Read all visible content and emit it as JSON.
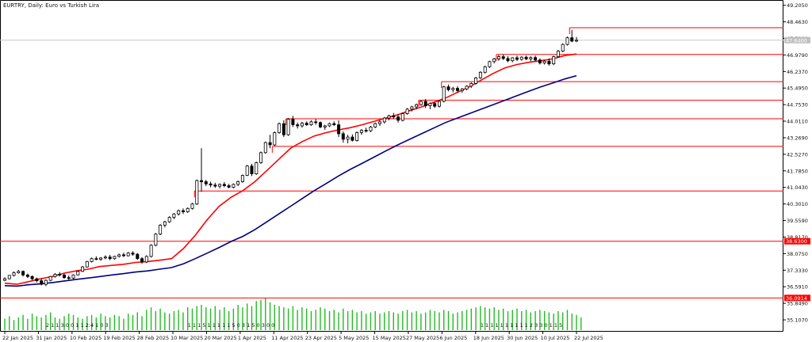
{
  "header": {
    "title": "EURTRY, Daily:  Euro vs Turkish Lira"
  },
  "price_axis": {
    "labels": [
      "49.2050",
      "48.4630",
      "47.7210",
      "46.9790",
      "46.2370",
      "45.4950",
      "44.7530",
      "44.0110",
      "43.2690",
      "42.5270",
      "41.7850",
      "41.0430",
      "40.3010",
      "39.5590",
      "38.8170",
      "38.0750",
      "37.3330",
      "36.5910",
      "35.8490",
      "35.1070"
    ],
    "current_price": "47.6400",
    "badges": [
      {
        "label": "38.6300",
        "value": 38.63
      },
      {
        "label": "36.0914",
        "value": 36.0914
      }
    ]
  },
  "time_axis": {
    "labels": [
      "22 Jan 2025",
      "31 Jan 2025",
      "10 Feb 2025",
      "19 Feb 2025",
      "28 Feb 2025",
      "10 Mar 2025",
      "20 Mar 2025",
      "1 Apr 2025",
      "11 Apr 2025",
      "23 Apr 2025",
      "5 May 2025",
      "15 May 2025",
      "27 May 2025",
      "6 Jun 2025",
      "18 Jun 2025",
      "30 Jun 2025",
      "10 Jul 2025",
      "22 Jul 2025"
    ]
  },
  "colors": {
    "background": "#ffffff",
    "candle_outline": "#000000",
    "candle_up_fill": "#ffffff",
    "candle_down_fill": "#000000",
    "ma_fast": "#ff0000",
    "ma_slow": "#000080",
    "level_line": "#ff0000",
    "volume": "#22bb22",
    "badge_bg": "#ff0000",
    "grid": "#c8c8c8"
  },
  "chart_data": {
    "type": "candlestick",
    "title": "EURTRY, Daily:  Euro vs Turkish Lira",
    "ylim": [
      34.86,
      49.21
    ],
    "x_range": [
      "22 Jan 2025",
      "24 Jul 2025"
    ],
    "grid": false,
    "candles": [
      {
        "o": 36.88,
        "h": 37.02,
        "l": 36.84,
        "c": 36.95
      },
      {
        "o": 36.95,
        "h": 37.12,
        "l": 36.92,
        "c": 37.1
      },
      {
        "o": 37.1,
        "h": 37.28,
        "l": 37.05,
        "c": 37.22
      },
      {
        "o": 37.22,
        "h": 37.35,
        "l": 37.18,
        "c": 37.28
      },
      {
        "o": 37.28,
        "h": 37.32,
        "l": 37.05,
        "c": 37.12
      },
      {
        "o": 37.12,
        "h": 37.18,
        "l": 36.98,
        "c": 37.05
      },
      {
        "o": 37.05,
        "h": 37.1,
        "l": 36.88,
        "c": 36.95
      },
      {
        "o": 36.95,
        "h": 37.0,
        "l": 36.78,
        "c": 36.86
      },
      {
        "o": 36.86,
        "h": 36.96,
        "l": 36.65,
        "c": 36.7
      },
      {
        "o": 36.7,
        "h": 36.92,
        "l": 36.62,
        "c": 36.88
      },
      {
        "o": 36.88,
        "h": 37.08,
        "l": 36.84,
        "c": 37.05
      },
      {
        "o": 37.05,
        "h": 37.2,
        "l": 37.0,
        "c": 37.15
      },
      {
        "o": 37.15,
        "h": 37.25,
        "l": 37.05,
        "c": 37.12
      },
      {
        "o": 37.12,
        "h": 37.18,
        "l": 36.95,
        "c": 37.0
      },
      {
        "o": 37.0,
        "h": 37.1,
        "l": 36.9,
        "c": 36.98
      },
      {
        "o": 36.98,
        "h": 37.15,
        "l": 36.94,
        "c": 37.12
      },
      {
        "o": 37.12,
        "h": 37.32,
        "l": 37.1,
        "c": 37.28
      },
      {
        "o": 37.28,
        "h": 37.52,
        "l": 37.25,
        "c": 37.48
      },
      {
        "o": 37.48,
        "h": 37.75,
        "l": 37.45,
        "c": 37.72
      },
      {
        "o": 37.72,
        "h": 37.9,
        "l": 37.68,
        "c": 37.85
      },
      {
        "o": 37.85,
        "h": 37.95,
        "l": 37.78,
        "c": 37.82
      },
      {
        "o": 37.82,
        "h": 37.92,
        "l": 37.75,
        "c": 37.88
      },
      {
        "o": 37.88,
        "h": 38.0,
        "l": 37.82,
        "c": 37.92
      },
      {
        "o": 37.92,
        "h": 38.02,
        "l": 37.78,
        "c": 37.85
      },
      {
        "o": 37.85,
        "h": 37.98,
        "l": 37.8,
        "c": 37.95
      },
      {
        "o": 37.95,
        "h": 38.08,
        "l": 37.9,
        "c": 38.02
      },
      {
        "o": 38.02,
        "h": 38.12,
        "l": 37.92,
        "c": 37.98
      },
      {
        "o": 37.98,
        "h": 38.15,
        "l": 37.95,
        "c": 38.1
      },
      {
        "o": 38.1,
        "h": 38.18,
        "l": 37.98,
        "c": 38.05
      },
      {
        "o": 38.05,
        "h": 38.1,
        "l": 37.8,
        "c": 37.85
      },
      {
        "o": 37.85,
        "h": 37.92,
        "l": 37.62,
        "c": 37.7
      },
      {
        "o": 37.7,
        "h": 38.0,
        "l": 37.65,
        "c": 37.95
      },
      {
        "o": 37.95,
        "h": 38.5,
        "l": 37.9,
        "c": 38.45
      },
      {
        "o": 38.45,
        "h": 39.0,
        "l": 38.4,
        "c": 38.95
      },
      {
        "o": 38.95,
        "h": 39.4,
        "l": 38.9,
        "c": 39.35
      },
      {
        "o": 39.35,
        "h": 39.55,
        "l": 39.25,
        "c": 39.5
      },
      {
        "o": 39.5,
        "h": 39.75,
        "l": 39.45,
        "c": 39.7
      },
      {
        "o": 39.7,
        "h": 39.9,
        "l": 39.62,
        "c": 39.85
      },
      {
        "o": 39.85,
        "h": 40.05,
        "l": 39.78,
        "c": 40.0
      },
      {
        "o": 40.0,
        "h": 40.1,
        "l": 39.85,
        "c": 39.95
      },
      {
        "o": 39.95,
        "h": 40.15,
        "l": 39.9,
        "c": 40.1
      },
      {
        "o": 40.1,
        "h": 40.35,
        "l": 40.05,
        "c": 40.3
      },
      {
        "o": 40.3,
        "h": 41.4,
        "l": 40.25,
        "c": 41.35
      },
      {
        "o": 41.35,
        "h": 42.8,
        "l": 40.85,
        "c": 41.3
      },
      {
        "o": 41.3,
        "h": 41.38,
        "l": 41.1,
        "c": 41.2
      },
      {
        "o": 41.2,
        "h": 41.3,
        "l": 41.05,
        "c": 41.15
      },
      {
        "o": 41.15,
        "h": 41.25,
        "l": 41.02,
        "c": 41.1
      },
      {
        "o": 41.1,
        "h": 41.22,
        "l": 41.0,
        "c": 41.18
      },
      {
        "o": 41.18,
        "h": 41.28,
        "l": 41.05,
        "c": 41.12
      },
      {
        "o": 41.12,
        "h": 41.2,
        "l": 41.0,
        "c": 41.05
      },
      {
        "o": 41.05,
        "h": 41.22,
        "l": 41.0,
        "c": 41.18
      },
      {
        "o": 41.18,
        "h": 41.35,
        "l": 41.1,
        "c": 41.3
      },
      {
        "o": 41.3,
        "h": 41.62,
        "l": 41.25,
        "c": 41.58
      },
      {
        "o": 41.58,
        "h": 42.05,
        "l": 41.55,
        "c": 42.0
      },
      {
        "o": 42.0,
        "h": 42.1,
        "l": 41.55,
        "c": 41.65
      },
      {
        "o": 41.65,
        "h": 42.2,
        "l": 41.6,
        "c": 42.15
      },
      {
        "o": 42.15,
        "h": 42.65,
        "l": 42.1,
        "c": 42.6
      },
      {
        "o": 42.6,
        "h": 43.1,
        "l": 42.55,
        "c": 43.05
      },
      {
        "o": 43.05,
        "h": 43.4,
        "l": 42.8,
        "c": 42.95
      },
      {
        "o": 42.95,
        "h": 43.55,
        "l": 42.9,
        "c": 43.5
      },
      {
        "o": 43.5,
        "h": 43.95,
        "l": 43.45,
        "c": 43.9
      },
      {
        "o": 43.9,
        "h": 44.05,
        "l": 43.3,
        "c": 43.4
      },
      {
        "o": 43.4,
        "h": 44.15,
        "l": 43.35,
        "c": 44.1
      },
      {
        "o": 44.1,
        "h": 44.25,
        "l": 43.75,
        "c": 43.85
      },
      {
        "o": 43.85,
        "h": 43.95,
        "l": 43.68,
        "c": 43.8
      },
      {
        "o": 43.8,
        "h": 43.98,
        "l": 43.72,
        "c": 43.92
      },
      {
        "o": 43.92,
        "h": 44.0,
        "l": 43.8,
        "c": 43.85
      },
      {
        "o": 43.85,
        "h": 44.05,
        "l": 43.8,
        "c": 43.98
      },
      {
        "o": 43.98,
        "h": 44.1,
        "l": 43.85,
        "c": 43.95
      },
      {
        "o": 43.95,
        "h": 44.0,
        "l": 43.7,
        "c": 43.75
      },
      {
        "o": 43.75,
        "h": 43.85,
        "l": 43.62,
        "c": 43.8
      },
      {
        "o": 43.8,
        "h": 43.95,
        "l": 43.75,
        "c": 43.9
      },
      {
        "o": 43.9,
        "h": 44.0,
        "l": 43.8,
        "c": 43.85
      },
      {
        "o": 43.85,
        "h": 44.05,
        "l": 43.3,
        "c": 43.45
      },
      {
        "o": 43.45,
        "h": 43.55,
        "l": 43.05,
        "c": 43.2
      },
      {
        "o": 43.2,
        "h": 43.4,
        "l": 43.02,
        "c": 43.3
      },
      {
        "o": 43.3,
        "h": 43.42,
        "l": 43.1,
        "c": 43.15
      },
      {
        "o": 43.15,
        "h": 43.55,
        "l": 43.1,
        "c": 43.5
      },
      {
        "o": 43.5,
        "h": 43.65,
        "l": 43.4,
        "c": 43.6
      },
      {
        "o": 43.6,
        "h": 43.72,
        "l": 43.5,
        "c": 43.58
      },
      {
        "o": 43.58,
        "h": 43.8,
        "l": 43.52,
        "c": 43.75
      },
      {
        "o": 43.75,
        "h": 43.95,
        "l": 43.7,
        "c": 43.9
      },
      {
        "o": 43.9,
        "h": 44.05,
        "l": 43.8,
        "c": 43.98
      },
      {
        "o": 43.98,
        "h": 44.2,
        "l": 43.9,
        "c": 44.15
      },
      {
        "o": 44.15,
        "h": 44.3,
        "l": 44.05,
        "c": 44.25
      },
      {
        "o": 44.25,
        "h": 44.38,
        "l": 44.1,
        "c": 44.2
      },
      {
        "o": 44.2,
        "h": 44.32,
        "l": 43.95,
        "c": 44.05
      },
      {
        "o": 44.05,
        "h": 44.4,
        "l": 44.0,
        "c": 44.35
      },
      {
        "o": 44.35,
        "h": 44.6,
        "l": 44.3,
        "c": 44.55
      },
      {
        "o": 44.55,
        "h": 44.7,
        "l": 44.45,
        "c": 44.65
      },
      {
        "o": 44.65,
        "h": 44.8,
        "l": 44.55,
        "c": 44.75
      },
      {
        "o": 44.75,
        "h": 44.95,
        "l": 44.7,
        "c": 44.9
      },
      {
        "o": 44.9,
        "h": 45.0,
        "l": 44.6,
        "c": 44.7
      },
      {
        "o": 44.7,
        "h": 44.85,
        "l": 44.55,
        "c": 44.8
      },
      {
        "o": 44.8,
        "h": 44.88,
        "l": 44.6,
        "c": 44.68
      },
      {
        "o": 44.68,
        "h": 44.95,
        "l": 44.62,
        "c": 44.9
      },
      {
        "o": 44.9,
        "h": 45.6,
        "l": 44.85,
        "c": 45.55
      },
      {
        "o": 45.55,
        "h": 45.65,
        "l": 45.35,
        "c": 45.42
      },
      {
        "o": 45.42,
        "h": 45.55,
        "l": 45.3,
        "c": 45.48
      },
      {
        "o": 45.48,
        "h": 45.58,
        "l": 45.3,
        "c": 45.38
      },
      {
        "o": 45.38,
        "h": 45.5,
        "l": 45.28,
        "c": 45.45
      },
      {
        "o": 45.45,
        "h": 45.62,
        "l": 45.4,
        "c": 45.58
      },
      {
        "o": 45.58,
        "h": 45.75,
        "l": 45.5,
        "c": 45.7
      },
      {
        "o": 45.7,
        "h": 46.0,
        "l": 45.65,
        "c": 45.95
      },
      {
        "o": 45.95,
        "h": 46.25,
        "l": 45.9,
        "c": 46.2
      },
      {
        "o": 46.2,
        "h": 46.5,
        "l": 46.15,
        "c": 46.45
      },
      {
        "o": 46.45,
        "h": 46.72,
        "l": 46.4,
        "c": 46.68
      },
      {
        "o": 46.68,
        "h": 46.85,
        "l": 46.6,
        "c": 46.8
      },
      {
        "o": 46.8,
        "h": 46.98,
        "l": 46.72,
        "c": 46.9
      },
      {
        "o": 46.9,
        "h": 47.0,
        "l": 46.75,
        "c": 46.82
      },
      {
        "o": 46.82,
        "h": 46.92,
        "l": 46.65,
        "c": 46.72
      },
      {
        "o": 46.72,
        "h": 46.88,
        "l": 46.65,
        "c": 46.85
      },
      {
        "o": 46.85,
        "h": 46.95,
        "l": 46.7,
        "c": 46.78
      },
      {
        "o": 46.78,
        "h": 46.92,
        "l": 46.72,
        "c": 46.88
      },
      {
        "o": 46.88,
        "h": 46.95,
        "l": 46.75,
        "c": 46.8
      },
      {
        "o": 46.8,
        "h": 46.92,
        "l": 46.7,
        "c": 46.86
      },
      {
        "o": 46.86,
        "h": 46.95,
        "l": 46.7,
        "c": 46.75
      },
      {
        "o": 46.75,
        "h": 46.82,
        "l": 46.55,
        "c": 46.62
      },
      {
        "o": 46.62,
        "h": 46.75,
        "l": 46.55,
        "c": 46.7
      },
      {
        "o": 46.7,
        "h": 46.82,
        "l": 46.5,
        "c": 46.58
      },
      {
        "o": 46.58,
        "h": 46.95,
        "l": 46.52,
        "c": 46.9
      },
      {
        "o": 46.9,
        "h": 47.2,
        "l": 46.85,
        "c": 47.15
      },
      {
        "o": 47.15,
        "h": 47.5,
        "l": 47.1,
        "c": 47.45
      },
      {
        "o": 47.45,
        "h": 47.8,
        "l": 47.4,
        "c": 47.75
      },
      {
        "o": 47.75,
        "h": 48.1,
        "l": 47.55,
        "c": 47.6
      },
      {
        "o": 47.6,
        "h": 47.78,
        "l": 47.55,
        "c": 47.64
      }
    ],
    "ma_fast": [
      36.75,
      36.7,
      36.82,
      36.95,
      37.05,
      37.2,
      37.3,
      37.38,
      37.5,
      37.55,
      37.6,
      37.68,
      37.72,
      37.78,
      37.85,
      38.3,
      38.9,
      39.6,
      40.2,
      40.6,
      40.9,
      41.3,
      41.8,
      42.3,
      42.8,
      43.1,
      43.35,
      43.5,
      43.62,
      43.72,
      43.85,
      44.0,
      44.15,
      44.3,
      44.48,
      44.65,
      44.85,
      45.05,
      45.3,
      45.55,
      45.85,
      46.15,
      46.4,
      46.55,
      46.65,
      46.72,
      46.8,
      46.95,
      47.02
    ],
    "ma_slow": [
      36.64,
      36.62,
      36.68,
      36.72,
      36.78,
      36.85,
      36.92,
      36.98,
      37.05,
      37.12,
      37.18,
      37.25,
      37.3,
      37.38,
      37.45,
      37.62,
      37.85,
      38.1,
      38.35,
      38.62,
      38.85,
      39.15,
      39.5,
      39.85,
      40.2,
      40.55,
      40.9,
      41.22,
      41.55,
      41.85,
      42.12,
      42.4,
      42.68,
      42.95,
      43.2,
      43.45,
      43.7,
      43.95,
      44.15,
      44.35,
      44.55,
      44.75,
      44.95,
      45.15,
      45.35,
      45.55,
      45.72,
      45.9,
      46.05
    ],
    "volume": [
      9,
      11,
      8,
      10,
      12,
      9,
      13,
      11,
      10,
      12,
      14,
      10,
      9,
      11,
      13,
      12,
      10,
      9,
      11,
      12,
      10,
      13,
      11,
      10,
      12,
      11,
      9,
      13,
      12,
      14,
      11,
      16,
      18,
      15,
      17,
      14,
      13,
      15,
      16,
      14,
      18,
      17,
      19,
      20,
      18,
      17,
      19,
      16,
      18,
      15,
      17,
      20,
      18,
      21,
      19,
      23,
      24,
      25,
      22,
      20,
      19,
      18,
      17,
      19,
      16,
      18,
      17,
      15,
      16,
      18,
      17,
      15,
      16,
      14,
      17,
      15,
      16,
      14,
      15,
      13,
      14,
      15,
      13,
      14,
      15,
      14,
      13,
      15,
      16,
      14,
      15,
      13,
      14,
      16,
      15,
      14,
      16,
      15,
      13,
      14,
      15,
      16,
      17,
      18,
      19,
      18,
      17,
      18,
      16,
      17,
      15,
      16,
      17,
      15,
      16,
      14,
      15,
      16,
      15,
      14,
      13,
      15,
      14,
      16,
      13,
      12,
      10
    ],
    "horizontal_levels": [
      {
        "price": 48.2,
        "start": 124
      },
      {
        "price": 47.0,
        "start": 108
      },
      {
        "price": 45.78,
        "start": 96
      },
      {
        "price": 44.95,
        "start": 91
      },
      {
        "price": 44.12,
        "start": 62
      },
      {
        "price": 42.88,
        "start": 59
      },
      {
        "price": 40.88,
        "start": 42
      },
      {
        "price": 38.63,
        "start": 0
      },
      {
        "price": 36.09,
        "start": 0
      }
    ],
    "volume_stamps": [
      {
        "start": 9,
        "text": "2 1 1 3:0 0 1 1 2:4 1 0 3"
      },
      {
        "start": 40,
        "text": "1 1 1 5 1 1 1 1 1 5 0 3 1 5 0 3 0 0"
      },
      {
        "start": 104,
        "text": "1 1 1 1 1 1 1 1 1 1 2 3 3 0 1 1 5"
      }
    ]
  }
}
